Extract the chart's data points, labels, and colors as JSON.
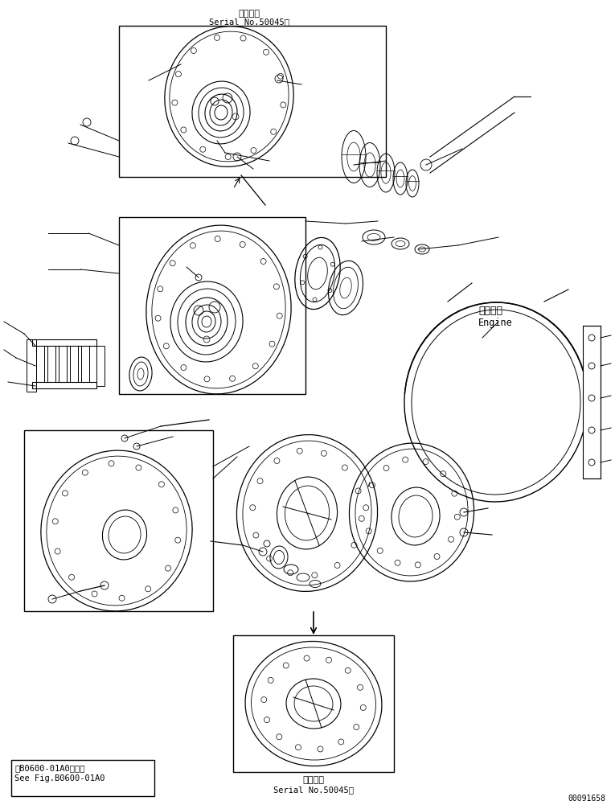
{
  "title_top_jp": "適用号機",
  "title_top_en": "Serial No.50045～",
  "title_bottom_jp": "適用号機",
  "title_bottom_en": "Serial No.50045～",
  "ref_box_line1": "第B0600-01A0図参照",
  "ref_box_line2": "See Fig.B0600-01A0",
  "engine_label_jp": "エンジン",
  "engine_label_en": "Engine",
  "doc_number": "00091658",
  "bg_color": "#ffffff",
  "line_color": "#000000"
}
